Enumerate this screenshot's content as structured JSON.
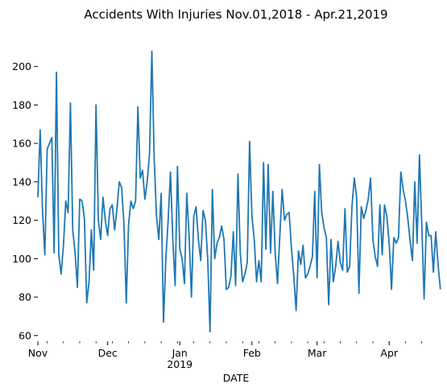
{
  "chart_data": {
    "type": "line",
    "title": "Accidents With Injuries Nov.01,2018 - Apr.21,2019",
    "xlabel": "DATE",
    "ylabel": "",
    "x_start": "2018-11-01",
    "x_end": "2019-04-21",
    "ylim": [
      57,
      212
    ],
    "y_ticks": [
      60,
      80,
      100,
      120,
      140,
      160,
      180,
      200
    ],
    "y_tick_labels": [
      "60",
      "80",
      "100",
      "120",
      "140",
      "160",
      "180",
      "200"
    ],
    "x_ticks": [
      {
        "date": "2018-11-01",
        "label": "Nov",
        "sublabel": ""
      },
      {
        "date": "2018-12-01",
        "label": "Dec",
        "sublabel": ""
      },
      {
        "date": "2019-01-01",
        "label": "Jan",
        "sublabel": "2019"
      },
      {
        "date": "2019-02-01",
        "label": "Feb",
        "sublabel": ""
      },
      {
        "date": "2019-03-01",
        "label": "Mar",
        "sublabel": ""
      },
      {
        "date": "2019-04-01",
        "label": "Apr",
        "sublabel": ""
      }
    ],
    "grid": false,
    "color": "#1f77b4",
    "series": [
      {
        "name": "",
        "values": [
          132,
          167,
          125,
          102,
          157,
          160,
          163,
          103,
          197,
          102,
          92,
          107,
          130,
          124,
          181,
          115,
          103,
          85,
          131,
          130,
          121,
          77,
          88,
          115,
          94,
          180,
          120,
          110,
          132,
          120,
          112,
          126,
          128,
          115,
          126,
          140,
          137,
          118,
          77,
          118,
          130,
          126,
          130,
          179,
          142,
          146,
          131,
          140,
          155,
          208,
          152,
          122,
          110,
          134,
          67,
          100,
          120,
          145,
          110,
          86,
          148,
          105,
          100,
          87,
          134,
          112,
          80,
          122,
          127,
          110,
          99,
          125,
          120,
          100,
          62,
          136,
          100,
          108,
          111,
          117,
          110,
          84,
          85,
          91,
          114,
          86,
          144,
          103,
          88,
          92,
          98,
          161,
          122,
          110,
          88,
          99,
          88,
          150,
          105,
          149,
          103,
          135,
          103,
          87,
          112,
          136,
          120,
          123,
          124,
          105,
          91,
          73,
          104,
          97,
          107,
          90,
          92,
          96,
          101,
          135,
          90,
          149,
          124,
          116,
          111,
          76,
          110,
          88,
          96,
          109,
          98,
          94,
          126,
          93,
          96,
          127,
          142,
          132,
          82,
          127,
          121,
          125,
          131,
          142,
          110,
          101,
          96,
          128,
          102,
          128,
          122,
          108,
          84,
          111,
          108,
          111,
          145,
          136,
          130,
          121,
          109,
          99,
          140,
          108,
          154,
          118,
          79,
          119,
          112,
          112,
          93,
          114,
          97,
          84
        ]
      }
    ]
  }
}
